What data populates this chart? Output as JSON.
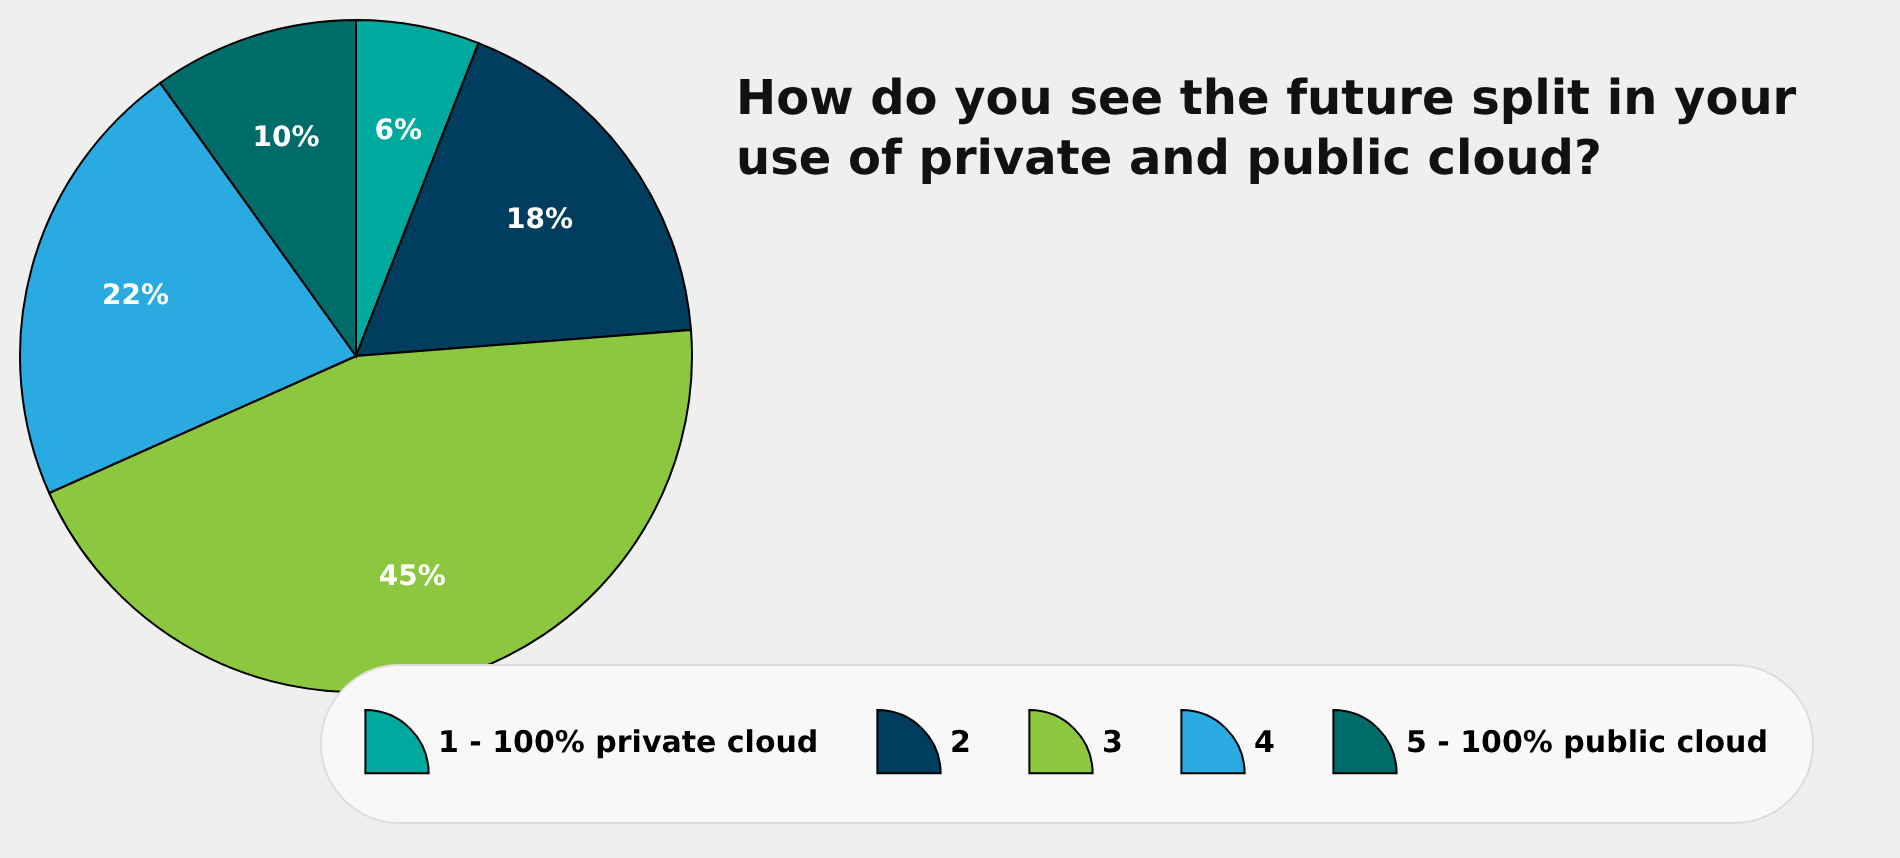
{
  "chart_data": {
    "type": "pie",
    "title": "How do you see the future split in your use of private and public cloud?",
    "categories": [
      "1 - 100% private cloud",
      "2",
      "3",
      "4",
      "5 - 100% public cloud"
    ],
    "values": [
      6,
      18,
      45,
      22,
      10
    ],
    "value_labels": [
      "6%",
      "18%",
      "45%",
      "22%",
      "10%"
    ],
    "colors": [
      "#00a99d",
      "#003d5e",
      "#8dc63f",
      "#29abe2",
      "#006c6a"
    ],
    "legend": "bottom"
  }
}
